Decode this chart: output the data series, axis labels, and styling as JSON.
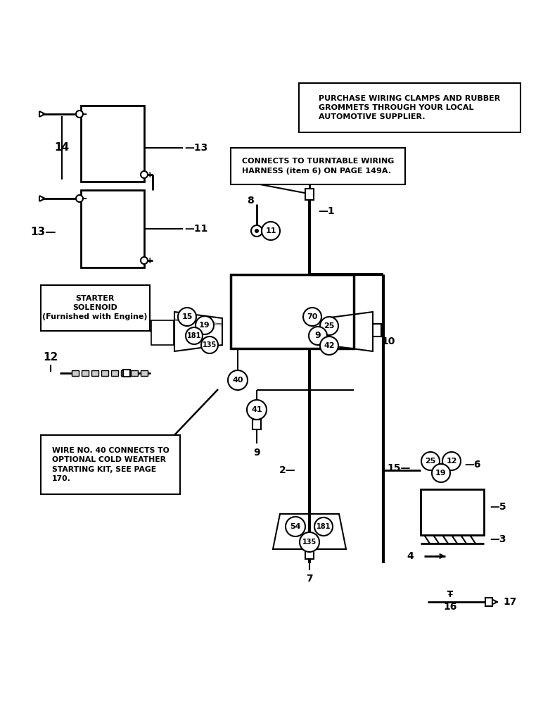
{
  "bg_color": "#ffffff",
  "lc": "#000000",
  "note1": "PURCHASE WIRING CLAMPS AND RUBBER\nGROMMETS THROUGH YOUR LOCAL\nAUTOMOTIVE SUPPLIER.",
  "note2": "CONNECTS TO TURNTABLE WIRING\nHARNESS (item 6) ON PAGE 149A.",
  "note3": "STARTER\nSOLENOID\n(Furnished with Engine)",
  "note4": "WIRE NO. 40 CONNECTS TO\nOPTIONAL COLD WEATHER\nSTARTING KIT, SEE PAGE\n170.",
  "figsize": [
    7.72,
    10.0
  ],
  "dpi": 100
}
